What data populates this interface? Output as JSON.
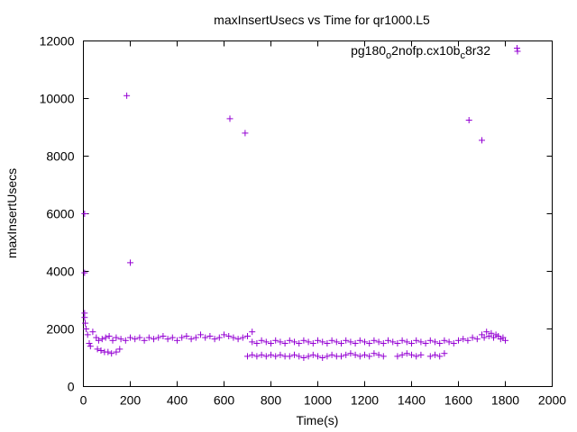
{
  "chart_data": {
    "type": "scatter",
    "title": "maxInsertUsecs vs Time for qr1000.L5",
    "xlabel": "Time(s)",
    "ylabel": "maxInsertUsecs",
    "xlim": [
      0,
      2000
    ],
    "ylim": [
      0,
      12000
    ],
    "x_ticks": [
      "0",
      "200",
      "400",
      "600",
      "800",
      "1000",
      "1200",
      "1400",
      "1600",
      "1800",
      "2000"
    ],
    "y_ticks": [
      "0",
      "2000",
      "4000",
      "6000",
      "8000",
      "10000",
      "12000"
    ],
    "x_tick_values": [
      0,
      200,
      400,
      600,
      800,
      1000,
      1200,
      1400,
      1600,
      1800,
      2000
    ],
    "y_tick_values": [
      0,
      2000,
      4000,
      6000,
      8000,
      10000,
      12000
    ],
    "grid": false,
    "legend": {
      "placement": "top-right"
    },
    "series": [
      {
        "name": "pg180_o2nofp.cx10b_c8r32",
        "name_parts": {
          "a": "pg180",
          "b": "o",
          "c": "2nofp.cx10b",
          "d": "c",
          "e": "8r32"
        },
        "color": "#9400d3",
        "marker": "plus",
        "points": [
          [
            1850,
            11750
          ],
          [
            185,
            10100
          ],
          [
            625,
            9300
          ],
          [
            690,
            8800
          ],
          [
            1645,
            9250
          ],
          [
            1700,
            8550
          ],
          [
            200,
            4300
          ],
          [
            5,
            3950
          ],
          [
            5,
            6000
          ],
          [
            5,
            2550
          ],
          [
            5,
            2400
          ],
          [
            8,
            2200
          ],
          [
            12,
            2000
          ],
          [
            18,
            1800
          ],
          [
            25,
            1500
          ],
          [
            30,
            1400
          ],
          [
            40,
            1900
          ],
          [
            55,
            1700
          ],
          [
            65,
            1600
          ],
          [
            80,
            1650
          ],
          [
            95,
            1700
          ],
          [
            110,
            1750
          ],
          [
            125,
            1600
          ],
          [
            140,
            1700
          ],
          [
            160,
            1650
          ],
          [
            180,
            1600
          ],
          [
            200,
            1700
          ],
          [
            220,
            1650
          ],
          [
            240,
            1700
          ],
          [
            260,
            1600
          ],
          [
            280,
            1700
          ],
          [
            300,
            1650
          ],
          [
            320,
            1700
          ],
          [
            340,
            1750
          ],
          [
            360,
            1650
          ],
          [
            380,
            1700
          ],
          [
            400,
            1600
          ],
          [
            420,
            1700
          ],
          [
            440,
            1750
          ],
          [
            460,
            1650
          ],
          [
            480,
            1700
          ],
          [
            500,
            1800
          ],
          [
            520,
            1700
          ],
          [
            540,
            1750
          ],
          [
            560,
            1650
          ],
          [
            580,
            1700
          ],
          [
            600,
            1800
          ],
          [
            620,
            1750
          ],
          [
            640,
            1700
          ],
          [
            660,
            1650
          ],
          [
            680,
            1700
          ],
          [
            700,
            1750
          ],
          [
            720,
            1900
          ],
          [
            60,
            1300
          ],
          [
            75,
            1250
          ],
          [
            90,
            1200
          ],
          [
            105,
            1200
          ],
          [
            120,
            1150
          ],
          [
            140,
            1200
          ],
          [
            155,
            1300
          ],
          [
            720,
            1550
          ],
          [
            740,
            1500
          ],
          [
            760,
            1600
          ],
          [
            780,
            1550
          ],
          [
            800,
            1500
          ],
          [
            820,
            1600
          ],
          [
            840,
            1550
          ],
          [
            860,
            1500
          ],
          [
            880,
            1600
          ],
          [
            900,
            1550
          ],
          [
            920,
            1500
          ],
          [
            940,
            1600
          ],
          [
            960,
            1550
          ],
          [
            980,
            1500
          ],
          [
            1000,
            1600
          ],
          [
            1020,
            1550
          ],
          [
            1040,
            1500
          ],
          [
            1060,
            1600
          ],
          [
            1080,
            1550
          ],
          [
            1100,
            1500
          ],
          [
            1120,
            1600
          ],
          [
            1140,
            1550
          ],
          [
            1160,
            1500
          ],
          [
            1180,
            1600
          ],
          [
            1200,
            1550
          ],
          [
            1220,
            1500
          ],
          [
            1240,
            1600
          ],
          [
            1260,
            1550
          ],
          [
            1280,
            1500
          ],
          [
            1300,
            1600
          ],
          [
            1320,
            1550
          ],
          [
            1340,
            1500
          ],
          [
            1360,
            1600
          ],
          [
            1380,
            1550
          ],
          [
            1400,
            1500
          ],
          [
            1420,
            1600
          ],
          [
            1440,
            1550
          ],
          [
            1460,
            1500
          ],
          [
            1480,
            1600
          ],
          [
            1500,
            1550
          ],
          [
            1520,
            1500
          ],
          [
            1540,
            1600
          ],
          [
            1560,
            1550
          ],
          [
            1580,
            1500
          ],
          [
            1600,
            1600
          ],
          [
            1620,
            1650
          ],
          [
            1640,
            1600
          ],
          [
            1660,
            1700
          ],
          [
            1680,
            1650
          ],
          [
            1700,
            1800
          ],
          [
            1710,
            1700
          ],
          [
            1720,
            1900
          ],
          [
            1730,
            1750
          ],
          [
            1740,
            1850
          ],
          [
            1750,
            1700
          ],
          [
            1760,
            1800
          ],
          [
            1770,
            1750
          ],
          [
            1780,
            1650
          ],
          [
            1790,
            1700
          ],
          [
            1800,
            1600
          ],
          [
            700,
            1050
          ],
          [
            720,
            1100
          ],
          [
            740,
            1050
          ],
          [
            760,
            1100
          ],
          [
            780,
            1050
          ],
          [
            800,
            1100
          ],
          [
            820,
            1050
          ],
          [
            840,
            1100
          ],
          [
            860,
            1050
          ],
          [
            880,
            1050
          ],
          [
            900,
            1100
          ],
          [
            920,
            1050
          ],
          [
            940,
            1000
          ],
          [
            960,
            1050
          ],
          [
            980,
            1100
          ],
          [
            1000,
            1050
          ],
          [
            1020,
            1000
          ],
          [
            1040,
            1050
          ],
          [
            1060,
            1100
          ],
          [
            1080,
            1050
          ],
          [
            1100,
            1050
          ],
          [
            1120,
            1100
          ],
          [
            1140,
            1150
          ],
          [
            1160,
            1100
          ],
          [
            1180,
            1050
          ],
          [
            1200,
            1100
          ],
          [
            1220,
            1050
          ],
          [
            1240,
            1150
          ],
          [
            1260,
            1100
          ],
          [
            1280,
            1050
          ],
          [
            1340,
            1050
          ],
          [
            1360,
            1100
          ],
          [
            1380,
            1150
          ],
          [
            1400,
            1100
          ],
          [
            1420,
            1050
          ],
          [
            1440,
            1100
          ],
          [
            1480,
            1050
          ],
          [
            1500,
            1100
          ],
          [
            1520,
            1050
          ],
          [
            1540,
            1150
          ]
        ]
      }
    ]
  }
}
